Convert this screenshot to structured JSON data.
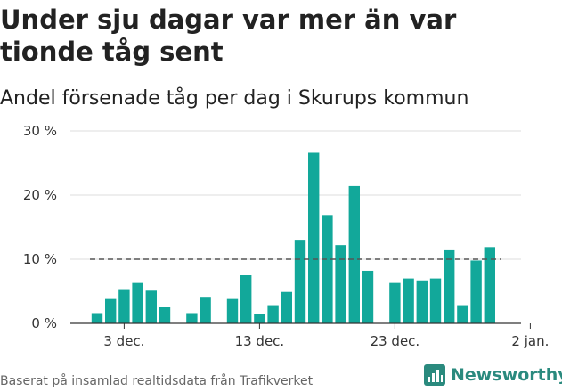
{
  "title": "Under sju dagar var mer än var tionde tåg sent",
  "subtitle": "Andel försenade tåg per dag i Skurups kommun",
  "footer": "Baserat på insamlad realtidsdata från Trafikverket",
  "logo": {
    "text": "Newsworthy",
    "icon": "newsworthy-chart-icon"
  },
  "colors": {
    "bar": "#12a89a",
    "grid": "#dddddd",
    "reference": "#555555",
    "logo": "#2a8a7e"
  },
  "chart_data": {
    "type": "bar",
    "x": [
      "2022-12-01",
      "2022-12-02",
      "2022-12-03",
      "2022-12-04",
      "2022-12-05",
      "2022-12-06",
      "2022-12-07",
      "2022-12-08",
      "2022-12-09",
      "2022-12-10",
      "2022-12-11",
      "2022-12-12",
      "2022-12-13",
      "2022-12-14",
      "2022-12-15",
      "2022-12-16",
      "2022-12-17",
      "2022-12-18",
      "2022-12-19",
      "2022-12-20",
      "2022-12-21",
      "2022-12-22",
      "2022-12-23",
      "2022-12-24",
      "2022-12-25",
      "2022-12-26",
      "2022-12-27",
      "2022-12-28",
      "2022-12-29",
      "2022-12-30",
      "2022-12-31"
    ],
    "values": [
      1.6,
      3.8,
      5.2,
      6.3,
      5.1,
      2.5,
      null,
      1.6,
      4.0,
      null,
      3.8,
      7.5,
      1.4,
      2.7,
      4.9,
      12.9,
      26.6,
      16.9,
      12.2,
      21.4,
      8.2,
      null,
      6.3,
      7.0,
      6.7,
      7.0,
      11.4,
      2.7,
      9.8,
      11.9,
      null
    ],
    "reference_line": 10,
    "x_ticks": [
      {
        "date": "2022-12-03",
        "label": "3 dec."
      },
      {
        "date": "2022-12-13",
        "label": "13 dec."
      },
      {
        "date": "2022-12-23",
        "label": "23 dec."
      },
      {
        "date": "2023-01-02",
        "label": "2 jan."
      }
    ],
    "y_ticks": [
      0,
      10,
      20,
      30
    ],
    "y_tick_labels": [
      "0 %",
      "10 %",
      "20 %",
      "30 %"
    ],
    "ylim": [
      0,
      30
    ],
    "grid": true
  }
}
